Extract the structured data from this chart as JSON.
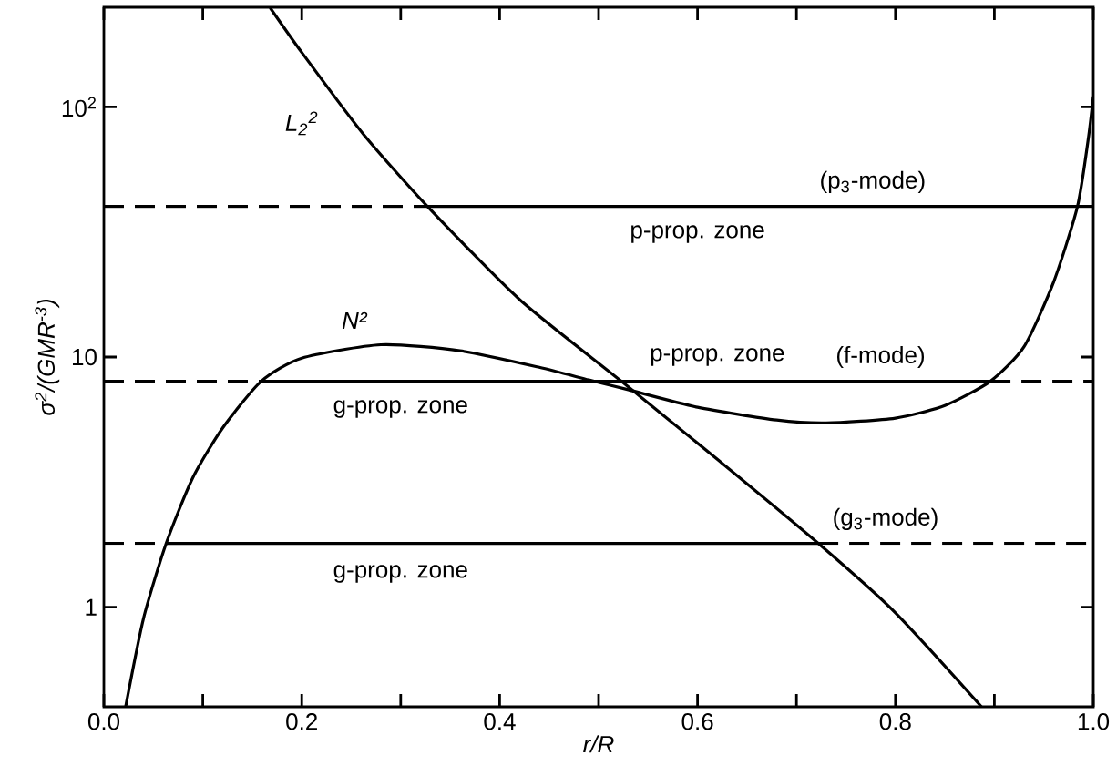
{
  "chart_data": {
    "type": "line",
    "xlabel": "r/R",
    "ylabel": "σ$^{2}$/(GMR$^{-3}$)",
    "xlim": [
      0,
      1
    ],
    "ylim": [
      0.4,
      250
    ],
    "log": "y",
    "grid": false,
    "legend": false,
    "marker": "none",
    "xticks": [
      {
        "value": 0,
        "label": "0.0"
      },
      {
        "value": 0.1,
        "label": null
      },
      {
        "value": 0.2,
        "label": "0.2"
      },
      {
        "value": 0.3,
        "label": null
      },
      {
        "value": 0.4,
        "label": "0.4"
      },
      {
        "value": 0.5,
        "label": null
      },
      {
        "value": 0.6,
        "label": "0.6"
      },
      {
        "value": 0.7,
        "label": null
      },
      {
        "value": 0.8,
        "label": "0.8"
      },
      {
        "value": 0.9,
        "label": null
      },
      {
        "value": 1,
        "label": "1.0"
      }
    ],
    "yticks": [
      1,
      10,
      {
        "value": 100,
        "label": "10$^{2}$"
      }
    ],
    "series": [
      {
        "name": "L$_{2}$$^{2}$",
        "color": "#000000",
        "line_style": "solid",
        "x": [
          0.168,
          0.2,
          0.262,
          0.327,
          0.42,
          0.523,
          0.62,
          0.722,
          0.8,
          0.887
        ],
        "values": [
          249,
          165,
          78,
          40,
          17,
          8,
          3.9,
          1.8,
          0.95,
          0.4
        ]
      },
      {
        "name": "N²",
        "color": "#000000",
        "line_style": "solid",
        "x": [
          0.022,
          0.04,
          0.063,
          0.09,
          0.12,
          0.159,
          0.2,
          0.28,
          0.36,
          0.44,
          0.49,
          0.53,
          0.6,
          0.68,
          0.73,
          0.8,
          0.85,
          0.896,
          0.93,
          0.96,
          0.984,
          0.995,
          1.0
        ],
        "values": [
          0.4,
          0.9,
          1.8,
          3.3,
          5.2,
          8,
          9.9,
          11.2,
          10.6,
          9.1,
          8.1,
          7.4,
          6.3,
          5.6,
          5.45,
          5.7,
          6.4,
          8,
          11,
          20,
          40,
          75,
          110
        ]
      },
      {
        "color": "#000000",
        "line_style": "dashed",
        "x": [
          0,
          0.327
        ],
        "values": [
          40,
          40
        ]
      },
      {
        "color": "#000000",
        "line_style": "solid",
        "x": [
          0.327,
          0.984
        ],
        "values": [
          40,
          40
        ]
      },
      {
        "color": "#000000",
        "line_style": "dashed",
        "x": [
          0.984,
          1.0
        ],
        "values": [
          40,
          40
        ]
      },
      {
        "color": "#000000",
        "line_style": "dashed",
        "x": [
          0,
          0.159
        ],
        "values": [
          8,
          8
        ]
      },
      {
        "color": "#000000",
        "line_style": "solid",
        "x": [
          0.159,
          0.896
        ],
        "values": [
          8,
          8
        ]
      },
      {
        "color": "#000000",
        "line_style": "dashed",
        "x": [
          0.896,
          1.0
        ],
        "values": [
          8,
          8
        ]
      },
      {
        "color": "#000000",
        "line_style": "dashed",
        "x": [
          0,
          0.063
        ],
        "values": [
          1.8,
          1.8
        ]
      },
      {
        "color": "#000000",
        "line_style": "solid",
        "x": [
          0.063,
          0.722
        ],
        "values": [
          1.8,
          1.8
        ]
      },
      {
        "color": "#000000",
        "line_style": "dashed",
        "x": [
          0.722,
          1.0
        ],
        "values": [
          1.8,
          1.8
        ]
      }
    ],
    "annotations": [
      "(p$_{3}$-mode)",
      "p-prop. zone",
      "p-prop. zone",
      "(f-mode)",
      "g-prop. zone",
      "(g$_{3}$-mode)",
      "g-prop. zone"
    ]
  }
}
